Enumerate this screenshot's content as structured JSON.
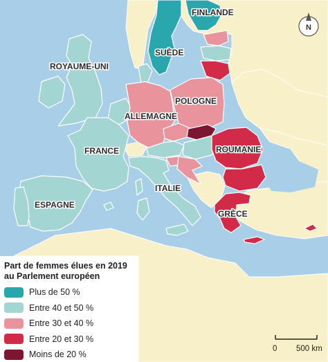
{
  "countries": {
    "finlande": "FINLANDE",
    "suede": "SUÈDE",
    "royaume_uni": "ROYAUME-UNI",
    "pologne": "POLOGNE",
    "allemagne": "ALLEMAGNE",
    "france": "FRANCE",
    "roumanie": "ROUMANIE",
    "italie": "ITALIE",
    "espagne": "ESPAGNE",
    "grece": "GRÈCE"
  },
  "legend": {
    "title_line1": "Part de femmes élues en 2019",
    "title_line2": "au Parlement européen",
    "items": [
      {
        "label": "Plus de 50 %",
        "color": "#2aa7ad"
      },
      {
        "label": "Entre 40 et 50 %",
        "color": "#a3d5d3"
      },
      {
        "label": "Entre 30 et 40 %",
        "color": "#e9949c"
      },
      {
        "label": "Entre 20 et 30 %",
        "color": "#d12b48"
      },
      {
        "label": "Moins de 20 %",
        "color": "#7c1631"
      }
    ]
  },
  "scale": {
    "zero": "0",
    "distance": "500 km"
  },
  "compass": {
    "letter": "N",
    "icon": "north-arrow-icon"
  },
  "colors": {
    "sea": "#a9cfe8",
    "non_eu_land": "#f7f0c9",
    "border": "#ffffff"
  }
}
